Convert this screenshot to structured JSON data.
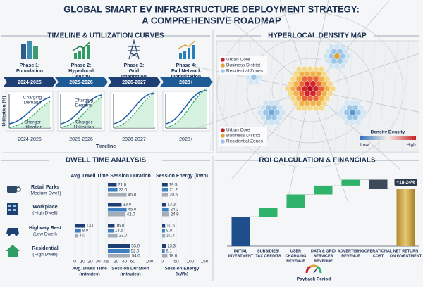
{
  "title_lines": [
    "GLOBAL SMART EV INFRASTRUCTURE DEPLOYMENT STRATEGY:",
    "A COMPREHENSIVE ROADMAP"
  ],
  "timeline": {
    "heading": "TIMELINE & UTILIZATION CURVES",
    "phases": [
      {
        "label": [
          "Phase 1:",
          "Foundation"
        ],
        "years": "2024-2025"
      },
      {
        "label": [
          "Phase 2:",
          "Hyperlocal",
          "Density"
        ],
        "years": "2025-2026"
      },
      {
        "label": [
          "Phase 3:",
          "Grid",
          "Integration"
        ],
        "years": "2026-2027"
      },
      {
        "label": [
          "Phase 4:",
          "Full Network",
          "Optimization"
        ],
        "years": "2028+"
      }
    ],
    "demand_label": [
      "Charging",
      "Demand"
    ],
    "utilization_label": [
      "Charger",
      "Utilization"
    ],
    "y_label": "Utilization (%)",
    "x_label": "Timeline"
  },
  "density_map": {
    "heading": "HYPERLOCAL DENSITY MAP",
    "legend": [
      {
        "label": "Urban Core",
        "color": "#c8202a"
      },
      {
        "label": "Business District",
        "color": "#e0a23a"
      },
      {
        "label": "Residential Zones",
        "color": "#9cc6e6"
      }
    ],
    "colorbar_title": "Density Density",
    "low": "Low",
    "high": "High"
  },
  "dwell": {
    "heading": "DWELL TIME ANALYSIS",
    "columns": [
      "Avg. Dwell Time",
      "Session Duration",
      "Session Energy (kWh)"
    ],
    "colors": [
      "#1d3f73",
      "#3d7fc0",
      "#a3adb8"
    ],
    "axes": [
      {
        "xlim": [
          0,
          40
        ],
        "xticks": [
          0,
          10,
          20,
          30,
          40
        ],
        "label": [
          "Avg. Dwell Time",
          "(minutes)"
        ]
      },
      {
        "xlim": [
          0,
          100
        ],
        "xticks": [
          0,
          20,
          40,
          60,
          100
        ],
        "label": [
          "Session Duration",
          "(minutes)"
        ]
      },
      {
        "xlim": [
          0,
          150
        ],
        "xticks": [
          0,
          50,
          100,
          150
        ],
        "label": [
          "Session Energy",
          "(kWh)"
        ]
      }
    ],
    "rows": [
      {
        "name": "Retail Parks",
        "note": "(Medium Dwell)",
        "session": {
          "values": [
            21,
            23,
            45
          ],
          "value_labels": [
            "21.0",
            "23.0",
            "45.0"
          ]
        },
        "energy": {
          "values": [
            19.5,
            21.2,
            20.5
          ]
        }
      },
      {
        "name": "Workplace",
        "note": "(High Dwell)",
        "session": {
          "values": [
            33,
            45,
            42
          ],
          "value_labels": [
            "33.0",
            "45.0",
            "42.0"
          ]
        },
        "energy": {
          "values": [
            13.3,
            24.2,
            24.9
          ]
        }
      },
      {
        "name": "Highway Rest",
        "note": "(Low Dwell)",
        "dwell": {
          "values": [
            13,
            8,
            4
          ],
          "value_labels": [
            "13.0",
            "8.0",
            "4.0"
          ]
        },
        "session": {
          "values": [
            16,
            13.5,
            23
          ],
          "value_labels": [
            "16.0",
            "13.5",
            "23.0"
          ]
        },
        "energy": {
          "values": [
            10.5,
            9.8,
            10.4
          ]
        }
      },
      {
        "name": "Residential",
        "note": "(High Dwell)",
        "session": {
          "values": [
            53,
            52,
            54
          ],
          "value_labels": [
            "53.0",
            "52.0",
            "54.0"
          ]
        },
        "energy": {
          "values": [
            13.3,
            9.1,
            18.6
          ]
        }
      }
    ]
  },
  "roi": {
    "heading": "ROI CALCULATION & FINANCIALS",
    "type": "waterfall",
    "categories": [
      [
        "INITIAL",
        "INVESTMENT"
      ],
      [
        "SUBSIDIES/",
        "TAX CREDITS"
      ],
      [
        "USER",
        "CHARGING",
        "REVENUE"
      ],
      [
        "DATA & GRID",
        "SERVICES",
        "REVENUE"
      ],
      [
        "ADVERTISING",
        "REVENUE"
      ],
      [
        "OPERATIONAL",
        "COST"
      ],
      [
        "NET RETURN",
        "ON INVESTMENT"
      ]
    ],
    "values": [
      100,
      30,
      45,
      30,
      20,
      -30,
      195
    ],
    "colors": [
      "#1f4e8c",
      "#2fb36a",
      "#2fb36a",
      "#2fb36a",
      "#2fb36a",
      "#3d4a5a",
      "#c9a646"
    ],
    "annotation": "+18-24%",
    "payback_label": "Payback Period"
  }
}
